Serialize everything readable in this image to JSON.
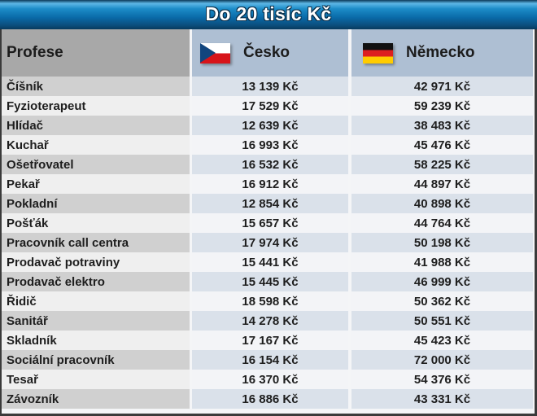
{
  "title": "Do 20 tisíc Kč",
  "header": {
    "profession": "Profese",
    "czech": {
      "label": "Česko",
      "flag": "czech-flag-icon"
    },
    "germany": {
      "label": "Německo",
      "flag": "german-flag-icon"
    }
  },
  "colors": {
    "title_bar": "#0a6aa8",
    "header_profession_bg": "#a8a8a8",
    "header_country_bg": "#aebfd3",
    "czech_flag": [
      "#ffffff",
      "#d7141a",
      "#11457e"
    ],
    "german_flag": [
      "#111111",
      "#dd1f1f",
      "#ffcc00"
    ]
  },
  "rows": [
    {
      "profession": "Číšník",
      "czech": "13 139 Kč",
      "germany": "42 971 Kč"
    },
    {
      "profession": "Fyzioterapeut",
      "czech": "17 529 Kč",
      "germany": "59 239 Kč"
    },
    {
      "profession": "Hlídač",
      "czech": "12 639 Kč",
      "germany": "38 483 Kč"
    },
    {
      "profession": "Kuchař",
      "czech": "16 993 Kč",
      "germany": "45 476 Kč"
    },
    {
      "profession": "Ošetřovatel",
      "czech": "16 532 Kč",
      "germany": "58 225 Kč"
    },
    {
      "profession": "Pekař",
      "czech": "16 912 Kč",
      "germany": "44 897 Kč"
    },
    {
      "profession": "Pokladní",
      "czech": "12 854 Kč",
      "germany": "40 898 Kč"
    },
    {
      "profession": "Pošťák",
      "czech": "15 657 Kč",
      "germany": "44 764 Kč"
    },
    {
      "profession": "Pracovník call centra",
      "czech": "17 974 Kč",
      "germany": "50 198 Kč"
    },
    {
      "profession": "Prodavač potraviny",
      "czech": "15 441 Kč",
      "germany": "41 988 Kč"
    },
    {
      "profession": "Prodavač elektro",
      "czech": "15 445 Kč",
      "germany": "46 999 Kč"
    },
    {
      "profession": "Řidič",
      "czech": "18 598 Kč",
      "germany": "50 362 Kč"
    },
    {
      "profession": "Sanitář",
      "czech": "14 278 Kč",
      "germany": "50 551 Kč"
    },
    {
      "profession": "Skladník",
      "czech": "17 167 Kč",
      "germany": "45 423 Kč"
    },
    {
      "profession": "Sociální pracovník",
      "czech": "16 154 Kč",
      "germany": "72 000 Kč"
    },
    {
      "profession": "Tesař",
      "czech": "16 370 Kč",
      "germany": "54 376 Kč"
    },
    {
      "profession": "Závozník",
      "czech": "16 886 Kč",
      "germany": "43 331 Kč"
    }
  ]
}
